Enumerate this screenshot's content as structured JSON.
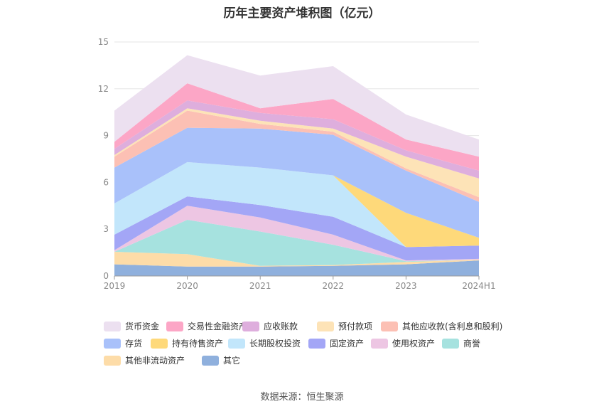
{
  "title": "历年主要资产堆积图（亿元）",
  "source": "数据来源：恒生聚源",
  "chart_data": {
    "type": "area",
    "stacked": true,
    "categories": [
      "2019",
      "2020",
      "2021",
      "2022",
      "2023",
      "2024H1"
    ],
    "ylim": [
      0,
      15
    ],
    "yticks": [
      "0",
      "3",
      "6",
      "9",
      "12",
      "15"
    ],
    "grid": true,
    "legend_position": "bottom",
    "series": [
      {
        "name": "其它",
        "color": "#8fb0dd",
        "values": [
          0.75,
          0.6,
          0.6,
          0.65,
          0.75,
          1.0
        ]
      },
      {
        "name": "其他非流动资产",
        "color": "#fddca8",
        "values": [
          0.8,
          0.8,
          0.05,
          0.05,
          0.15,
          0.05
        ]
      },
      {
        "name": "商誉",
        "color": "#a6e2df",
        "values": [
          0.0,
          2.2,
          2.2,
          1.3,
          0.05,
          0.0
        ]
      },
      {
        "name": "使用权资产",
        "color": "#edc6e3",
        "values": [
          0.1,
          0.9,
          0.9,
          0.65,
          0.05,
          0.05
        ]
      },
      {
        "name": "固定资产",
        "color": "#a3a6f6",
        "values": [
          1.0,
          0.6,
          0.8,
          1.15,
          0.85,
          0.85
        ]
      },
      {
        "name": "长期股权投资",
        "color": "#c2e6fb",
        "values": [
          2.0,
          2.2,
          2.4,
          2.65,
          0.0,
          0.0
        ]
      },
      {
        "name": "持有待售资产",
        "color": "#fed97a",
        "values": [
          0.0,
          0.0,
          0.0,
          0.0,
          2.2,
          0.5
        ]
      },
      {
        "name": "存货",
        "color": "#a9c1fa",
        "values": [
          2.3,
          2.2,
          2.5,
          2.6,
          2.7,
          2.3
        ]
      },
      {
        "name": "其他应收款(含利息和股利)",
        "color": "#fcc0b4",
        "values": [
          0.7,
          1.1,
          0.3,
          0.2,
          0.15,
          0.3
        ]
      },
      {
        "name": "预付款项",
        "color": "#fde3b7",
        "values": [
          0.1,
          0.15,
          0.2,
          0.2,
          0.75,
          1.2
        ]
      },
      {
        "name": "应收账款",
        "color": "#deaedd",
        "values": [
          0.4,
          0.5,
          0.5,
          0.6,
          0.4,
          0.5
        ]
      },
      {
        "name": "交易性金融资产",
        "color": "#fca6c6",
        "values": [
          0.45,
          1.1,
          0.3,
          1.3,
          0.7,
          0.9
        ]
      },
      {
        "name": "货币资金",
        "color": "#ece0f0",
        "values": [
          2.0,
          1.8,
          2.1,
          2.1,
          1.6,
          1.1
        ]
      }
    ]
  },
  "legend_order": [
    "货币资金",
    "交易性金融资产",
    "应收账款",
    "预付款项",
    "其他应收款(含利息和股利)",
    "存货",
    "持有待售资产",
    "长期股权投资",
    "固定资产",
    "使用权资产",
    "商誉",
    "其他非流动资产",
    "其它"
  ]
}
